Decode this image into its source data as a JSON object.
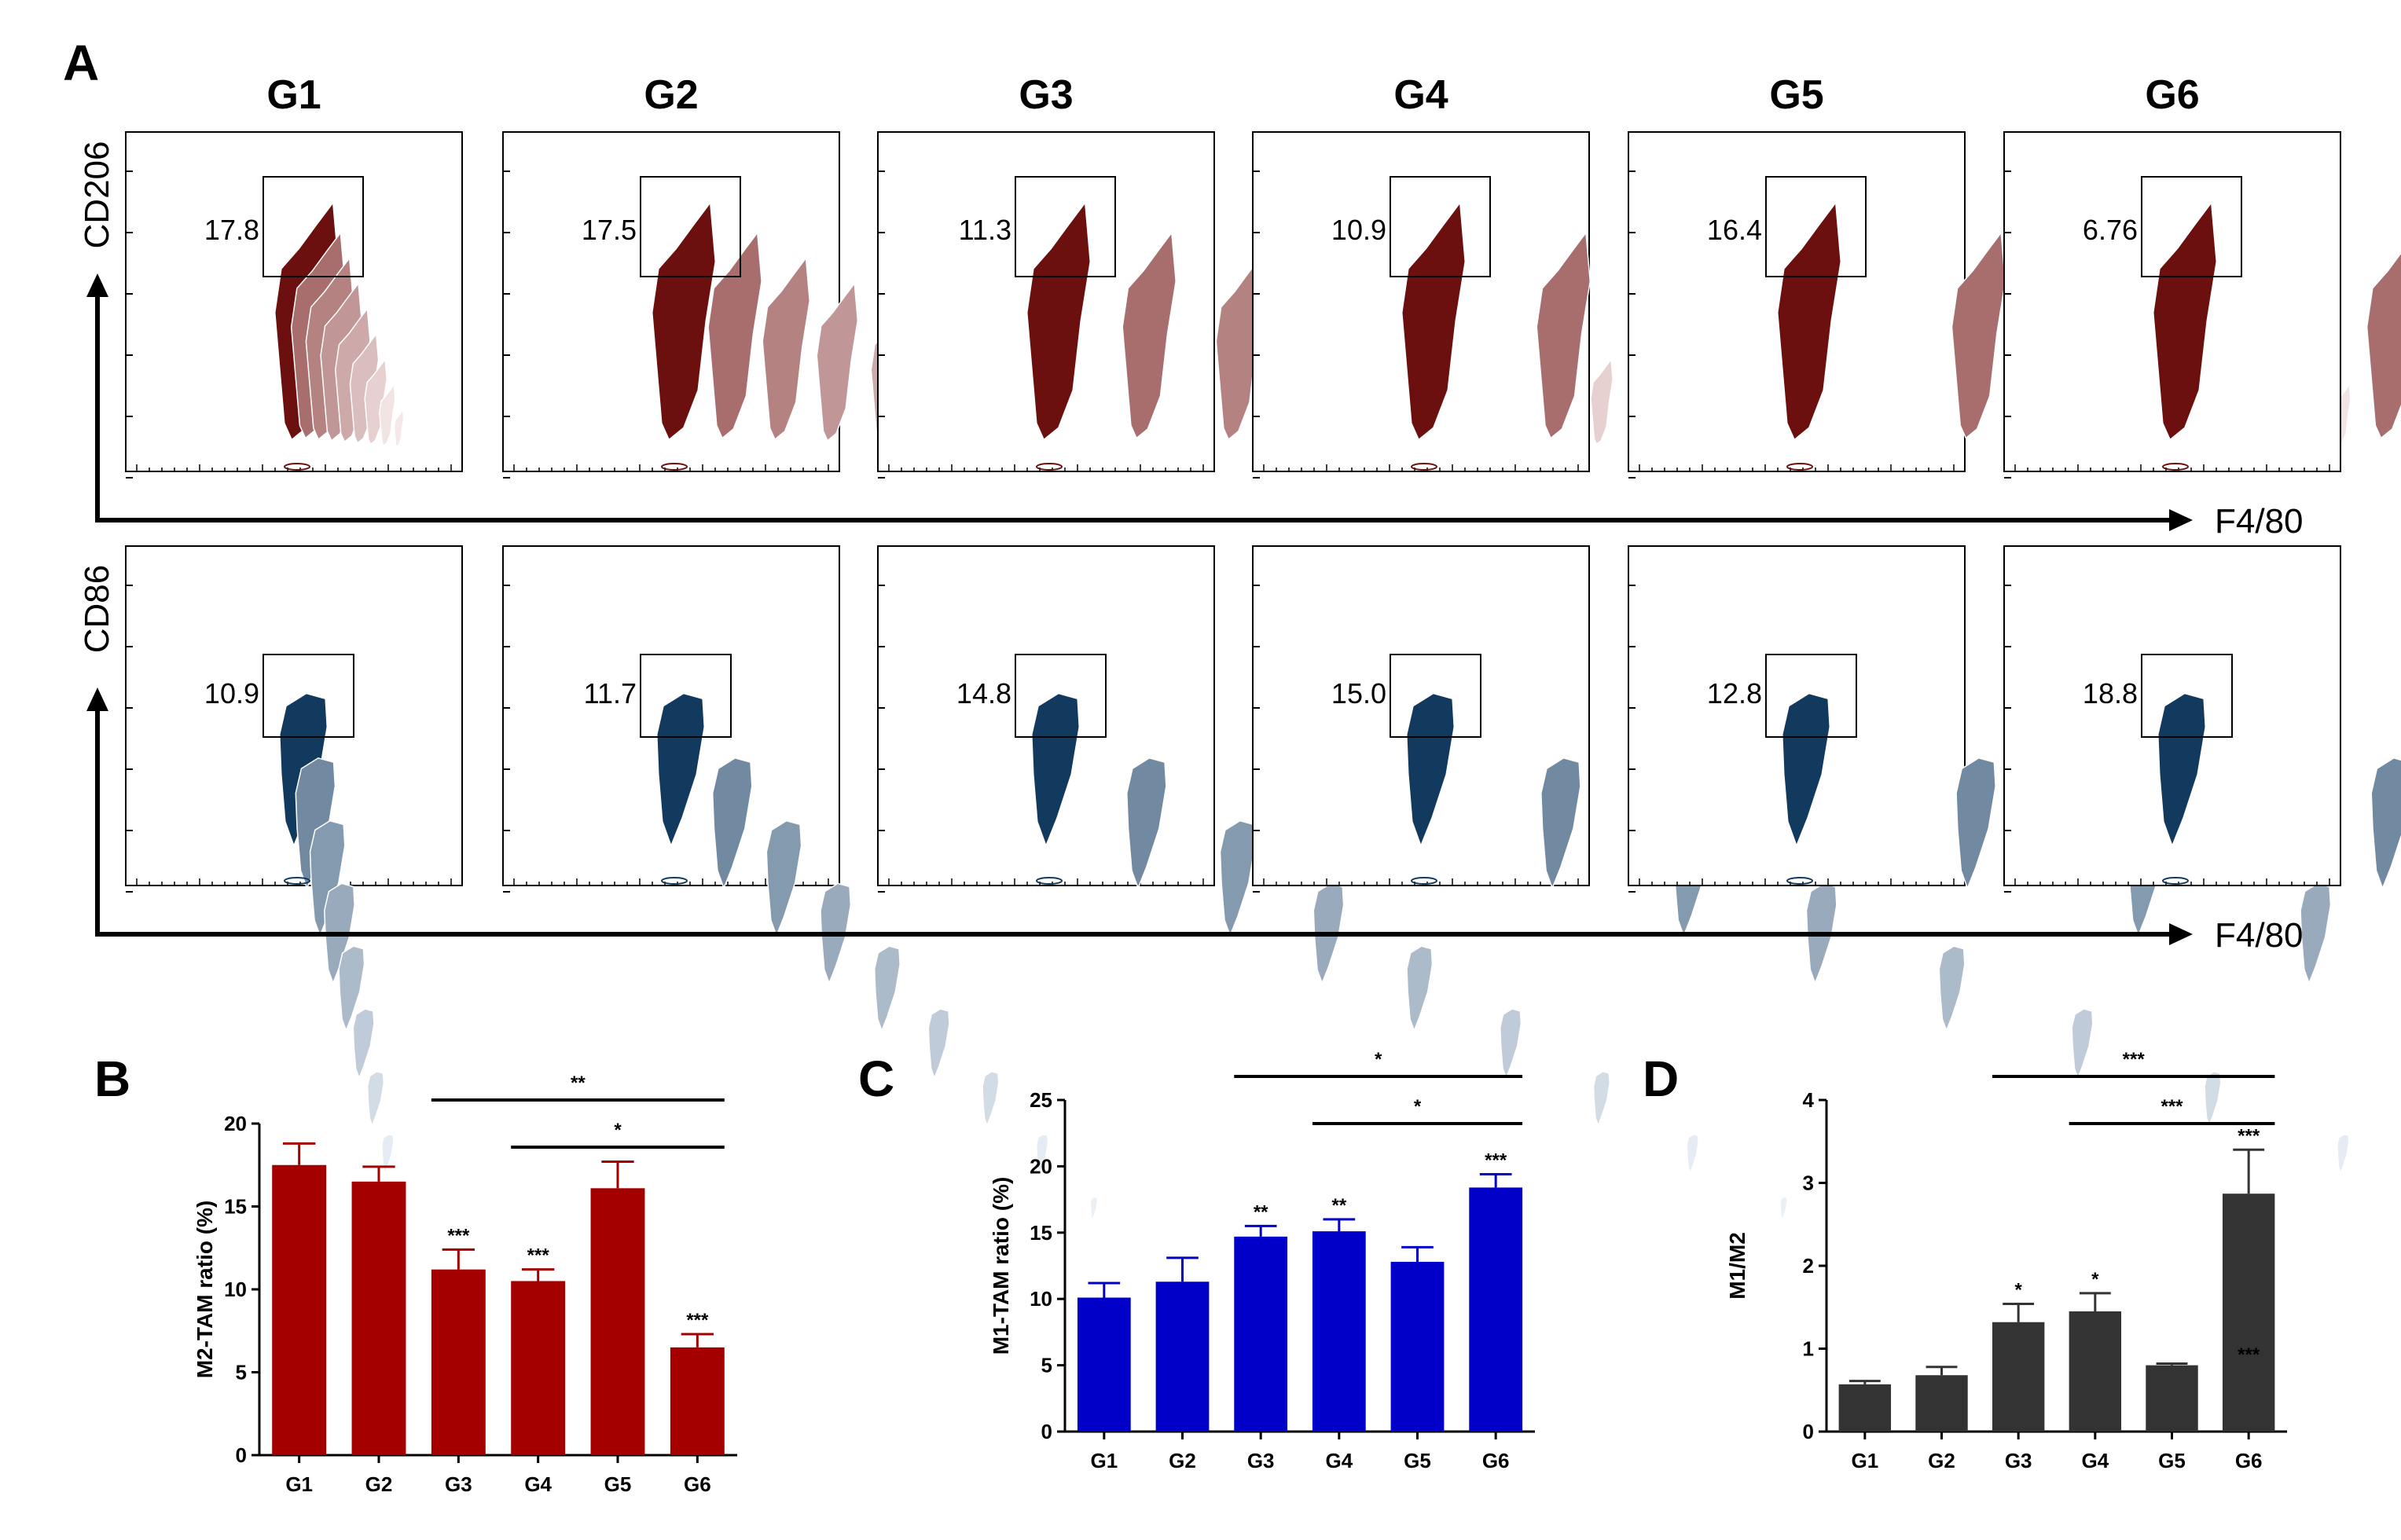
{
  "panel_labels": {
    "a": "A",
    "b": "B",
    "c": "C",
    "d": "D"
  },
  "flow": {
    "groups": [
      "G1",
      "G2",
      "G3",
      "G4",
      "G5",
      "G6"
    ],
    "rows": [
      {
        "marker": "CD206",
        "x_marker": "F4/80",
        "color": "#6b0f0f",
        "light": "#f6e8e8",
        "percentages": [
          "17.8",
          "17.5",
          "11.3",
          "10.9",
          "16.4",
          "6.76"
        ]
      },
      {
        "marker": "CD86",
        "x_marker": "F4/80",
        "color": "#12395e",
        "light": "#eaf0f6",
        "percentages": [
          "10.9",
          "11.7",
          "14.8",
          "15.0",
          "12.8",
          "18.8"
        ]
      }
    ]
  },
  "chart_data": [
    {
      "type": "bar",
      "panel": "B",
      "categories": [
        "G1",
        "G2",
        "G3",
        "G4",
        "G5",
        "G6"
      ],
      "values": [
        17.5,
        16.5,
        11.2,
        10.5,
        16.1,
        6.5
      ],
      "errors": [
        1.3,
        0.9,
        1.2,
        0.7,
        1.6,
        0.8
      ],
      "annotations": [
        "",
        "",
        "***",
        "***",
        "",
        "***"
      ],
      "comparisons": [
        {
          "from": 2,
          "to": 5,
          "label": "**"
        },
        {
          "from": 3,
          "to": 5,
          "label": "*"
        }
      ],
      "ylabel": "M2-TAM ratio (%)",
      "ylim": [
        0,
        20
      ],
      "yticks": [
        0,
        5,
        10,
        15,
        20
      ],
      "color": "#a40000"
    },
    {
      "type": "bar",
      "panel": "C",
      "categories": [
        "G1",
        "G2",
        "G3",
        "G4",
        "G5",
        "G6"
      ],
      "values": [
        10.1,
        11.3,
        14.7,
        15.1,
        12.8,
        18.4
      ],
      "errors": [
        1.1,
        1.8,
        0.8,
        0.9,
        1.1,
        1.0
      ],
      "annotations": [
        "",
        "",
        "**",
        "**",
        "",
        "***"
      ],
      "comparisons": [
        {
          "from": 2,
          "to": 5,
          "label": "*"
        },
        {
          "from": 3,
          "to": 5,
          "label": "*"
        }
      ],
      "ylabel": "M1-TAM ratio (%)",
      "ylim": [
        0,
        25
      ],
      "yticks": [
        0,
        5,
        10,
        15,
        20,
        25
      ],
      "color": "#0000c8"
    },
    {
      "type": "bar",
      "panel": "D",
      "categories": [
        "G1",
        "G2",
        "G3",
        "G4",
        "G5",
        "G6"
      ],
      "values": [
        0.57,
        0.68,
        1.32,
        1.45,
        0.8,
        2.87
      ],
      "errors": [
        0.04,
        0.1,
        0.22,
        0.22,
        0.02,
        0.53
      ],
      "annotations": [
        "",
        "",
        "*",
        "*",
        "",
        "***"
      ],
      "inner_annotations": [
        "",
        "",
        "",
        "",
        "",
        "***"
      ],
      "comparisons": [
        {
          "from": 2,
          "to": 5,
          "label": "***"
        },
        {
          "from": 3,
          "to": 5,
          "label": "***"
        }
      ],
      "ylabel": "M1/M2",
      "ylim": [
        0,
        4
      ],
      "yticks": [
        0,
        1,
        2,
        3,
        4
      ],
      "color": "#333333"
    }
  ]
}
